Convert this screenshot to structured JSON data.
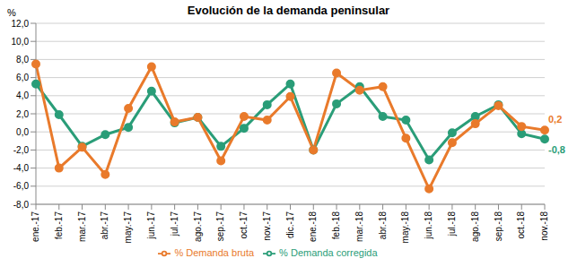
{
  "chart_data": {
    "type": "line",
    "title": "Evolución de la demanda peninsular",
    "y_label": "%",
    "categories": [
      "ene.-17",
      "feb.-17",
      "mar.-17",
      "abr.-17",
      "may.-17",
      "jun.-17",
      "jul.-17",
      "ago.-17",
      "sep.-17",
      "oct.-17",
      "nov.-17",
      "dic.-17",
      "ene.-18",
      "feb.-18",
      "mar.-18",
      "abr.-18",
      "may.-18",
      "jun.-18",
      "jul.-18",
      "ago.-18",
      "sep.-18",
      "oct.-18",
      "nov.-18"
    ],
    "series": [
      {
        "name": "% Demanda corregida",
        "color": "#2a9d78",
        "marker": "circle",
        "values": [
          5.3,
          1.9,
          -1.6,
          -0.3,
          0.5,
          4.5,
          1.0,
          1.6,
          -1.6,
          0.4,
          3.0,
          5.3,
          -2.0,
          3.1,
          5.0,
          1.7,
          1.3,
          -3.1,
          -0.1,
          1.7,
          3.0,
          -0.2,
          -0.8
        ]
      },
      {
        "name": "% Demanda bruta",
        "color": "#e97a2b",
        "marker": "circle",
        "values": [
          7.5,
          -4.0,
          -1.7,
          -4.7,
          2.6,
          7.2,
          1.1,
          1.6,
          -3.2,
          1.7,
          1.3,
          3.9,
          -2.0,
          6.5,
          4.6,
          5.0,
          -0.7,
          -6.3,
          -1.2,
          0.9,
          2.9,
          0.6,
          0.2
        ]
      }
    ],
    "annotations": [
      {
        "text": "-0,8",
        "series": "% Demanda corregida"
      },
      {
        "text": "0,2",
        "series": "% Demanda bruta"
      }
    ],
    "ylim": [
      -8,
      12
    ],
    "yticks": [
      {
        "value": -8,
        "label": "-8,0"
      },
      {
        "value": -6,
        "label": "-6,0"
      },
      {
        "value": -4,
        "label": "-4,0"
      },
      {
        "value": -2,
        "label": "-2,0"
      },
      {
        "value": 0,
        "label": "0,0"
      },
      {
        "value": 2,
        "label": "2,0"
      },
      {
        "value": 4,
        "label": "4,0"
      },
      {
        "value": 6,
        "label": "6,0"
      },
      {
        "value": 8,
        "label": "8,0"
      },
      {
        "value": 10,
        "label": "10,0"
      },
      {
        "value": 12,
        "label": "12,0"
      }
    ],
    "grid": true,
    "legend": "bottom"
  }
}
